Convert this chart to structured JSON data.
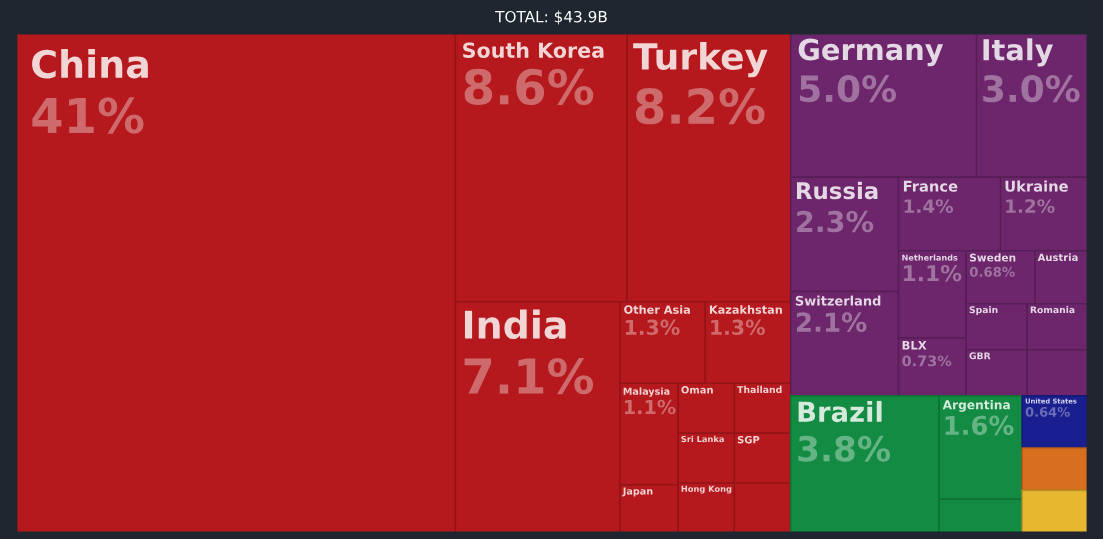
{
  "chart_data": {
    "type": "other",
    "title": "TOTAL: $43.9B",
    "categories": [
      "China",
      "South Korea",
      "Turkey",
      "India",
      "Other Asia",
      "Kazakhstan",
      "Malaysia",
      "Japan",
      "Oman",
      "Thailand",
      "Sri Lanka",
      "Hong Kong",
      "SGP",
      null,
      "Germany",
      "Italy",
      "Russia",
      "Switzerland",
      "France",
      "Ukraine",
      "Netherlands",
      "BLX",
      "Sweden",
      "Austria",
      "Spain",
      "GBR",
      "Romania",
      null,
      "Brazil",
      "Argentina",
      null,
      "United States",
      null,
      null
    ],
    "values": [
      41,
      8.6,
      8.2,
      7.1,
      1.3,
      1.3,
      1.1,
      null,
      null,
      null,
      null,
      null,
      null,
      null,
      5.0,
      3.0,
      2.3,
      2.1,
      1.4,
      1.2,
      1.1,
      0.73,
      0.68,
      null,
      null,
      null,
      null,
      null,
      3.8,
      1.6,
      null,
      0.64,
      null,
      null
    ],
    "value_labels": [
      "41%",
      "8.6%",
      "8.2%",
      "7.1%",
      "1.3%",
      "1.3%",
      "1.1%",
      null,
      null,
      null,
      null,
      null,
      null,
      null,
      "5.0%",
      "3.0%",
      "2.3%",
      "2.1%",
      "1.4%",
      "1.2%",
      "1.1%",
      "0.73%",
      "0.68%",
      null,
      null,
      null,
      null,
      null,
      "3.8%",
      "1.6%",
      null,
      "0.64%",
      null,
      null
    ],
    "colors": [
      "#b5191d",
      "#b5191d",
      "#b5191d",
      "#b5191d",
      "#b5191d",
      "#b5191d",
      "#b5191d",
      "#b5191d",
      "#b5191d",
      "#b5191d",
      "#b5191d",
      "#b5191d",
      "#b5191d",
      "#b5191d",
      "#6d266c",
      "#6d266c",
      "#6d266c",
      "#6d266c",
      "#6d266c",
      "#6d266c",
      "#6d266c",
      "#6d266c",
      "#6d266c",
      "#6d266c",
      "#6d266c",
      "#6d266c",
      "#6d266c",
      "#6d266c",
      "#138b43",
      "#138b43",
      "#138b43",
      "#1a1f8f",
      "#d86f1f",
      "#e8b730"
    ]
  }
}
